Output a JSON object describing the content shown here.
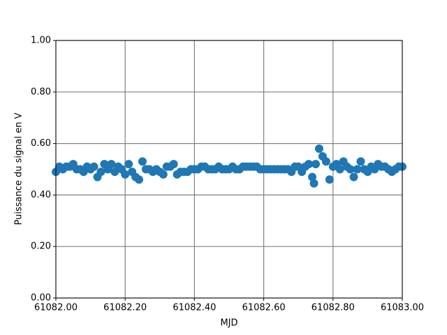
{
  "chart_data": {
    "type": "scatter",
    "xlabel": "MJD",
    "ylabel": "Puissance du signal en V",
    "xlim": [
      61082,
      61083
    ],
    "ylim": [
      0,
      1
    ],
    "xticks": [
      {
        "value": 61082,
        "label": "61082.00"
      },
      {
        "value": 61082.2,
        "label": "61082.20"
      },
      {
        "value": 61082.4,
        "label": "61082.40"
      },
      {
        "value": 61082.6,
        "label": "61082.60"
      },
      {
        "value": 61082.8,
        "label": "61082.80"
      },
      {
        "value": 61083,
        "label": "61083.00"
      }
    ],
    "yticks": [
      {
        "value": 0,
        "label": "0.00"
      },
      {
        "value": 0.2,
        "label": "0.20"
      },
      {
        "value": 0.4,
        "label": "0.40"
      },
      {
        "value": 0.6,
        "label": "0.60"
      },
      {
        "value": 0.8,
        "label": "0.80"
      },
      {
        "value": 1,
        "label": "1.00"
      }
    ],
    "grid": true,
    "color": "#1f77b4",
    "x": [
      61082,
      61082.01,
      61082.02,
      61082.03,
      61082.04,
      61082.05,
      61082.06,
      61082.07,
      61082.08,
      61082.09,
      61082.1,
      61082.11,
      61082.12,
      61082.13,
      61082.14,
      61082.15,
      61082.16,
      61082.17,
      61082.18,
      61082.19,
      61082.2,
      61082.21,
      61082.22,
      61082.23,
      61082.24,
      61082.25,
      61082.26,
      61082.27,
      61082.28,
      61082.29,
      61082.3,
      61082.31,
      61082.32,
      61082.33,
      61082.34,
      61082.35,
      61082.36,
      61082.37,
      61082.38,
      61082.39,
      61082.4,
      61082.41,
      61082.42,
      61082.43,
      61082.44,
      61082.45,
      61082.46,
      61082.47,
      61082.48,
      61082.49,
      61082.5,
      61082.51,
      61082.52,
      61082.53,
      61082.54,
      61082.55,
      61082.56,
      61082.57,
      61082.58,
      61082.59,
      61082.6,
      61082.61,
      61082.62,
      61082.63,
      61082.64,
      61082.65,
      61082.66,
      61082.67,
      61082.68,
      61082.69,
      61082.7,
      61082.71,
      61082.72,
      61082.73,
      61082.74,
      61082.745,
      61082.75,
      61082.76,
      61082.77,
      61082.78,
      61082.79,
      61082.8,
      61082.81,
      61082.82,
      61082.83,
      61082.84,
      61082.85,
      61082.86,
      61082.87,
      61082.88,
      61082.89,
      61082.9,
      61082.91,
      61082.92,
      61082.93,
      61082.94,
      61082.95,
      61082.96,
      61082.97,
      61082.98,
      61082.99,
      61083
    ],
    "values": [
      0.49,
      0.51,
      0.5,
      0.51,
      0.51,
      0.52,
      0.5,
      0.5,
      0.49,
      0.51,
      0.5,
      0.51,
      0.47,
      0.49,
      0.52,
      0.5,
      0.52,
      0.49,
      0.51,
      0.5,
      0.48,
      0.52,
      0.49,
      0.47,
      0.46,
      0.53,
      0.5,
      0.5,
      0.49,
      0.5,
      0.49,
      0.48,
      0.51,
      0.51,
      0.52,
      0.48,
      0.49,
      0.49,
      0.49,
      0.5,
      0.5,
      0.5,
      0.51,
      0.51,
      0.5,
      0.5,
      0.5,
      0.51,
      0.5,
      0.5,
      0.5,
      0.51,
      0.5,
      0.5,
      0.51,
      0.51,
      0.51,
      0.51,
      0.51,
      0.5,
      0.5,
      0.5,
      0.5,
      0.5,
      0.5,
      0.5,
      0.5,
      0.5,
      0.49,
      0.51,
      0.51,
      0.49,
      0.51,
      0.52,
      0.47,
      0.445,
      0.52,
      0.58,
      0.55,
      0.53,
      0.46,
      0.51,
      0.52,
      0.5,
      0.53,
      0.51,
      0.5,
      0.47,
      0.5,
      0.53,
      0.5,
      0.49,
      0.51,
      0.5,
      0.52,
      0.51,
      0.51,
      0.5,
      0.49,
      0.5,
      0.51,
      0.51
    ]
  }
}
